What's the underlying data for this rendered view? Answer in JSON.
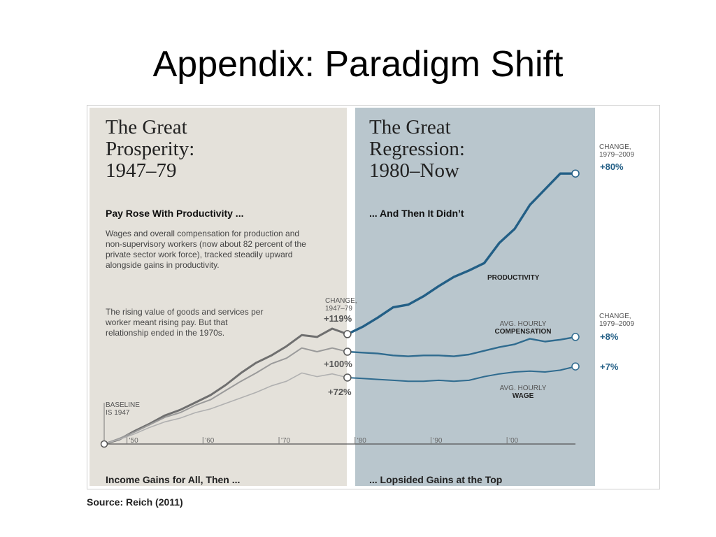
{
  "slide": {
    "title": "Appendix: Paradigm Shift",
    "source": "Source: Reich (2011)"
  },
  "left_panel": {
    "title_lines": [
      "The Great",
      "Prosperity:",
      "1947–79"
    ],
    "subhead": "Pay Rose With Productivity ...",
    "paragraph_1": "Wages and overall compensation for production and non-supervisory workers (now about 82 percent of the private sector work force), tracked steadily upward alongside gains in productivity.",
    "paragraph_2": "The rising value of goods and services per worker meant rising pay. But that relationship ended in the 1970s.",
    "footer": "Income Gains for All, Then ..."
  },
  "right_panel": {
    "title_lines": [
      "The Great",
      "Regression:",
      "1980–Now"
    ],
    "subhead": "... And Then It Didn’t",
    "footer": "... Lopsided Gains at the Top"
  },
  "labels": {
    "baseline": [
      "BASELINE",
      "IS 1947"
    ],
    "change_1947_79": [
      "CHANGE,",
      "1947–79"
    ],
    "change_1979_2009": [
      "CHANGE,",
      "1979–2009"
    ],
    "pct_productivity_1979": "+119%",
    "pct_compensation_1979": "+100%",
    "pct_wage_1979": "+72%",
    "pct_productivity_2009": "+80%",
    "pct_compensation_2009": "+8%",
    "pct_wage_2009": "+7%",
    "productivity": "PRODUCTIVITY",
    "compensation": [
      "AVG. HOURLY",
      "COMPENSATION"
    ],
    "wage": [
      "AVG. HOURLY",
      "WAGE"
    ]
  },
  "colors": {
    "left_bg": "#e4e1da",
    "right_bg": "#b9c6cd",
    "productivity_left": "#6f6f6f",
    "compensation_left": "#9a9a9a",
    "wage_left": "#b0b0b0",
    "productivity_right": "#235f86",
    "compensation_right": "#2f6b8f",
    "wage_right": "#2f6b8f"
  },
  "chart_data": {
    "type": "line",
    "xlim": [
      1947,
      2009
    ],
    "ylim": [
      0,
      300
    ],
    "x_ticks": [
      1950,
      1960,
      1970,
      1980,
      1990,
      2000
    ],
    "x_tick_labels": [
      "'50",
      "'60",
      "'70",
      "'80",
      "'90",
      "'00"
    ],
    "series": [
      {
        "name": "PRODUCTIVITY",
        "x": [
          1947,
          1949,
          1951,
          1953,
          1955,
          1957,
          1959,
          1961,
          1963,
          1965,
          1967,
          1969,
          1971,
          1973,
          1975,
          1977,
          1979,
          1981,
          1983,
          1985,
          1987,
          1989,
          1991,
          1993,
          1995,
          1997,
          1999,
          2001,
          2003,
          2005,
          2007,
          2009
        ],
        "y": [
          0,
          5,
          14,
          22,
          31,
          37,
          45,
          53,
          64,
          77,
          88,
          96,
          106,
          118,
          116,
          125,
          119,
          127,
          137,
          148,
          151,
          160,
          171,
          181,
          188,
          196,
          218,
          233,
          259,
          276,
          293,
          293
        ]
      },
      {
        "name": "AVG. HOURLY COMPENSATION",
        "x": [
          1947,
          1949,
          1951,
          1953,
          1955,
          1957,
          1959,
          1961,
          1963,
          1965,
          1967,
          1969,
          1971,
          1973,
          1975,
          1977,
          1979,
          1981,
          1983,
          1985,
          1987,
          1989,
          1991,
          1993,
          1995,
          1997,
          1999,
          2001,
          2003,
          2005,
          2007,
          2009
        ],
        "y": [
          0,
          6,
          13,
          21,
          29,
          34,
          42,
          48,
          58,
          68,
          77,
          87,
          93,
          104,
          100,
          104,
          100,
          99,
          98,
          96,
          95,
          96,
          96,
          95,
          97,
          101,
          105,
          108,
          114,
          111,
          113,
          116
        ]
      },
      {
        "name": "AVG. HOURLY WAGE",
        "x": [
          1947,
          1949,
          1951,
          1953,
          1955,
          1957,
          1959,
          1961,
          1963,
          1965,
          1967,
          1969,
          1971,
          1973,
          1975,
          1977,
          1979,
          1981,
          1983,
          1985,
          1987,
          1989,
          1991,
          1993,
          1995,
          1997,
          1999,
          2001,
          2003,
          2005,
          2007,
          2009
        ],
        "y": [
          0,
          5,
          11,
          18,
          24,
          28,
          34,
          38,
          44,
          50,
          56,
          63,
          68,
          77,
          73,
          76,
          72,
          71,
          70,
          69,
          68,
          68,
          69,
          68,
          69,
          73,
          76,
          78,
          79,
          78,
          80,
          84
        ]
      }
    ]
  }
}
